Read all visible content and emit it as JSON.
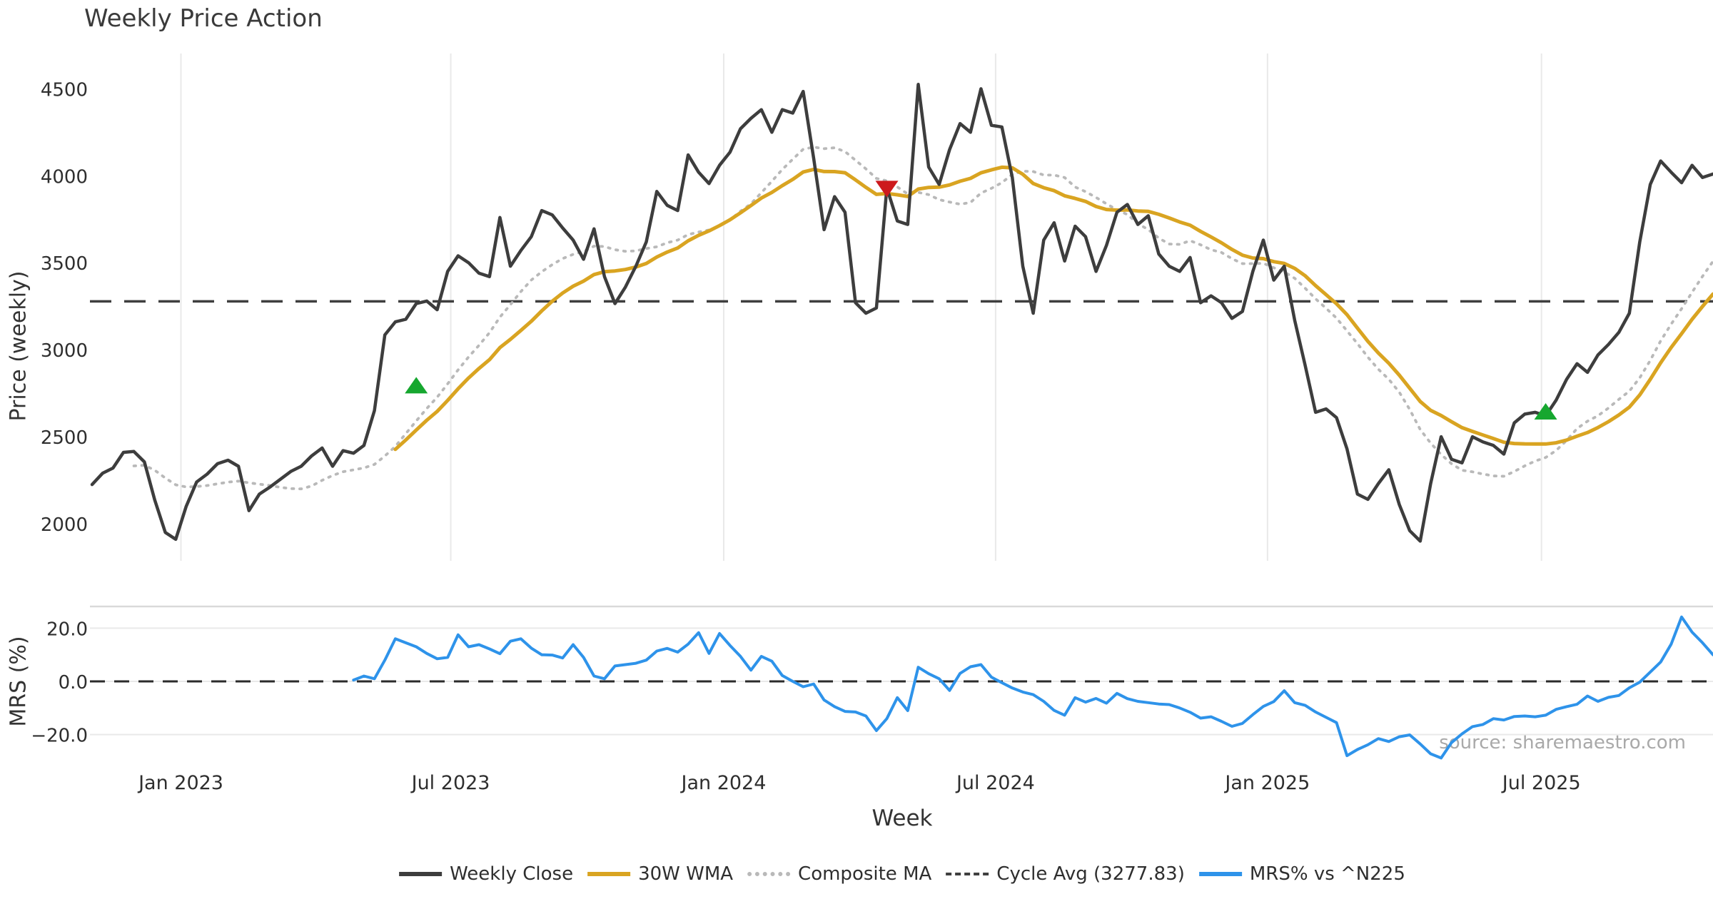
{
  "chart_data": {
    "type": "line",
    "title": "Weekly Price Action",
    "source_text": "source: sharemaestro.com",
    "x_unit": "week",
    "x_axis": {
      "label": "Week",
      "ticks": [
        {
          "label": "Jan 2023",
          "week": 8.5
        },
        {
          "label": "Jul 2023",
          "week": 34.3
        },
        {
          "label": "Jan 2024",
          "week": 60.4
        },
        {
          "label": "Jul 2024",
          "week": 86.4
        },
        {
          "label": "Jan 2025",
          "week": 112.4
        },
        {
          "label": "Jul 2025",
          "week": 138.6
        }
      ]
    },
    "price_axis": {
      "label": "Price (weekly)",
      "ticks": [
        2000,
        2500,
        3000,
        3500,
        4000,
        4500
      ],
      "range": [
        1860,
        4760
      ],
      "grid": "vertical-only"
    },
    "mrs_axis": {
      "label": "MRS (%)",
      "ticks": [
        {
          "label": "20.0",
          "value": 20
        },
        {
          "label": "0.0",
          "value": 0
        },
        {
          "label": "−20.0",
          "value": -20
        }
      ],
      "range": [
        -31.5,
        28.2
      ],
      "grid": "horizontal-only"
    },
    "cycle_avg": 3277.83,
    "series": [
      {
        "name": "Weekly Close",
        "panel": "price",
        "color": "#3d3d3d",
        "width": 4.5,
        "start_index": 0,
        "values": [
          2225,
          2290,
          2320,
          2410,
          2415,
          2355,
          2135,
          1950,
          1910,
          2100,
          2240,
          2285,
          2345,
          2365,
          2330,
          2075,
          2170,
          2210,
          2255,
          2300,
          2330,
          2390,
          2435,
          2330,
          2420,
          2405,
          2450,
          2650,
          3085,
          3160,
          3175,
          3265,
          3280,
          3230,
          3450,
          3540,
          3500,
          3440,
          3420,
          3760,
          3480,
          3570,
          3650,
          3800,
          3775,
          3700,
          3630,
          3520,
          3695,
          3420,
          3265,
          3360,
          3480,
          3620,
          3910,
          3830,
          3800,
          4120,
          4020,
          3955,
          4060,
          4135,
          4270,
          4330,
          4380,
          4250,
          4380,
          4360,
          4485,
          4100,
          3690,
          3880,
          3790,
          3270,
          3210,
          3240,
          3930,
          3740,
          3720,
          4525,
          4050,
          3950,
          4150,
          4300,
          4250,
          4500,
          4290,
          4280,
          3990,
          3480,
          3210,
          3630,
          3730,
          3510,
          3710,
          3650,
          3450,
          3600,
          3790,
          3835,
          3720,
          3770,
          3550,
          3480,
          3450,
          3530,
          3270,
          3310,
          3270,
          3180,
          3220,
          3450,
          3630,
          3400,
          3480,
          3170,
          2910,
          2640,
          2660,
          2610,
          2430,
          2170,
          2140,
          2230,
          2310,
          2110,
          1960,
          1900,
          2230,
          2500,
          2370,
          2350,
          2500,
          2470,
          2450,
          2400,
          2580,
          2630,
          2640,
          2620,
          2710,
          2830,
          2920,
          2870,
          2970,
          3030,
          3100,
          3210,
          3620,
          3950,
          4085,
          4020,
          3960,
          4060,
          3990,
          4010
        ]
      },
      {
        "name": "30W WMA",
        "panel": "price",
        "color": "#d9a421",
        "width": 5,
        "derived": "linear_weighted_ma_30_of_weekly_close",
        "start_index": 29
      },
      {
        "name": "Composite MA",
        "panel": "price",
        "color": "#b9b9b9",
        "width": 3.8,
        "style": "dotted",
        "derived": "sma_15_min_5_of_weekly_close",
        "start_index": 4
      },
      {
        "name": "Cycle Avg (3277.83)",
        "panel": "price",
        "color": "#3f3f3f",
        "style": "dashed-hline",
        "value": 3277.83
      },
      {
        "name": "MRS% vs ^N225",
        "panel": "mrs",
        "color": "#2e93ea",
        "width": 4,
        "start_index": 25,
        "values": [
          0.5,
          2.0,
          1.0,
          8.0,
          16.0,
          14.5,
          13.0,
          10.5,
          8.5,
          9.0,
          17.5,
          13.0,
          13.8,
          12.2,
          10.4,
          15.1,
          16.0,
          12.5,
          10.0,
          9.9,
          8.8,
          13.8,
          9.0,
          2.0,
          1.0,
          5.8,
          6.3,
          6.8,
          8.0,
          11.4,
          12.4,
          11.0,
          14.0,
          18.3,
          10.5,
          18.0,
          13.5,
          9.4,
          4.2,
          9.4,
          7.6,
          2.2,
          0.0,
          -2.0,
          -1.0,
          -7.0,
          -9.5,
          -11.3,
          -11.5,
          -13.0,
          -18.5,
          -14.0,
          -6.1,
          -11.0,
          5.3,
          2.9,
          1.0,
          -3.4,
          3.0,
          5.5,
          6.3,
          1.6,
          -0.5,
          -2.5,
          -4.0,
          -5.0,
          -7.5,
          -10.9,
          -12.7,
          -6.1,
          -7.8,
          -6.4,
          -8.2,
          -4.5,
          -6.5,
          -7.5,
          -8.0,
          -8.5,
          -8.7,
          -10.0,
          -11.6,
          -13.8,
          -13.3,
          -15.0,
          -16.9,
          -15.8,
          -12.5,
          -9.4,
          -7.6,
          -3.5,
          -8.0,
          -9.0,
          -11.5,
          -13.5,
          -15.5,
          -27.9,
          -25.6,
          -23.8,
          -21.5,
          -22.6,
          -20.8,
          -20.1,
          -23.5,
          -27.2,
          -28.8,
          -23.0,
          -19.7,
          -17.0,
          -16.2,
          -14.0,
          -14.5,
          -13.2,
          -13.0,
          -13.3,
          -12.7,
          -10.5,
          -9.5,
          -8.6,
          -5.5,
          -7.5,
          -6.0,
          -5.3,
          -2.4,
          -0.3,
          3.5,
          7.3,
          14.0,
          24.2,
          18.5,
          14.5,
          10.0
        ]
      }
    ],
    "markers": [
      {
        "shape": "triangle-up",
        "meaning": "buy-signal",
        "color": "#16a72f",
        "week": 31,
        "price": 2790
      },
      {
        "shape": "triangle-down",
        "meaning": "sell-signal",
        "color": "#cd1a1d",
        "week": 76,
        "price": 3930
      },
      {
        "shape": "triangle-up",
        "meaning": "buy-signal",
        "color": "#16a72f",
        "week": 139,
        "price": 2640
      }
    ],
    "legend": [
      {
        "label": "Weekly Close",
        "swatch": "solid",
        "color": "#3d3d3d"
      },
      {
        "label": "30W WMA",
        "swatch": "solid",
        "color": "#d9a421"
      },
      {
        "label": "Composite MA",
        "swatch": "dotted",
        "color": "#b9b9b9"
      },
      {
        "label": "Cycle Avg (3277.83)",
        "swatch": "dashed",
        "color": "#3f3f3f"
      },
      {
        "label": "MRS% vs ^N225",
        "swatch": "solid",
        "color": "#2e93ea"
      }
    ],
    "colors": {
      "grid": "#e9e9e9",
      "panel_border": "#d9d9d9",
      "tick_text": "#2e2e2e",
      "zero_dash": "#2b2b2b"
    }
  }
}
